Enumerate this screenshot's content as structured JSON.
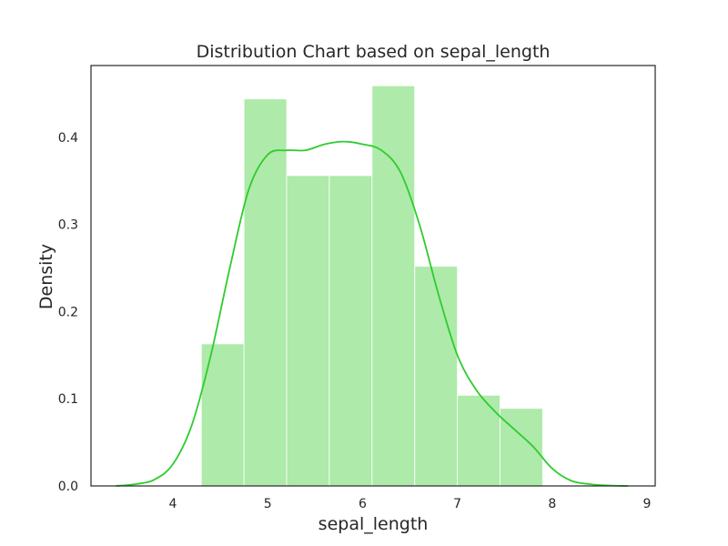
{
  "chart_data": {
    "type": "bar",
    "title": "Distribution Chart based on sepal_length",
    "xlabel": "sepal_length",
    "ylabel": "Density",
    "xlim": [
      3.1,
      9.07
    ],
    "ylim": [
      0.0,
      0.4
    ],
    "x_ticks": [
      4,
      5,
      6,
      7,
      8,
      9
    ],
    "y_ticks": [
      0.0,
      0.1,
      0.2,
      0.3,
      0.4
    ],
    "x_tick_labels": [
      "4",
      "5",
      "6",
      "7",
      "8",
      "9"
    ],
    "y_tick_labels": [
      "0.0",
      "0.1",
      "0.2",
      "0.3",
      "0.4"
    ],
    "grid": false,
    "histogram": {
      "bin_edges": [
        4.3,
        4.75,
        5.2,
        5.65,
        6.1,
        6.55,
        7.0,
        7.45,
        7.9
      ],
      "density": [
        0.163,
        0.444,
        0.356,
        0.356,
        0.459,
        0.252,
        0.104,
        0.089
      ],
      "color": "#aeeaa9"
    },
    "kde": {
      "color": "#2ecc2e",
      "x": [
        3.4,
        3.6,
        3.8,
        4.0,
        4.2,
        4.4,
        4.6,
        4.8,
        5.0,
        5.2,
        5.4,
        5.6,
        5.8,
        6.0,
        6.2,
        6.4,
        6.6,
        6.8,
        7.0,
        7.2,
        7.4,
        7.6,
        7.8,
        8.0,
        8.2,
        8.4,
        8.6,
        8.8
      ],
      "y": [
        0.0,
        0.002,
        0.007,
        0.025,
        0.07,
        0.15,
        0.25,
        0.34,
        0.38,
        0.385,
        0.385,
        0.392,
        0.395,
        0.392,
        0.385,
        0.36,
        0.3,
        0.22,
        0.15,
        0.11,
        0.085,
        0.065,
        0.045,
        0.02,
        0.006,
        0.002,
        0.0005,
        0.0
      ]
    }
  }
}
